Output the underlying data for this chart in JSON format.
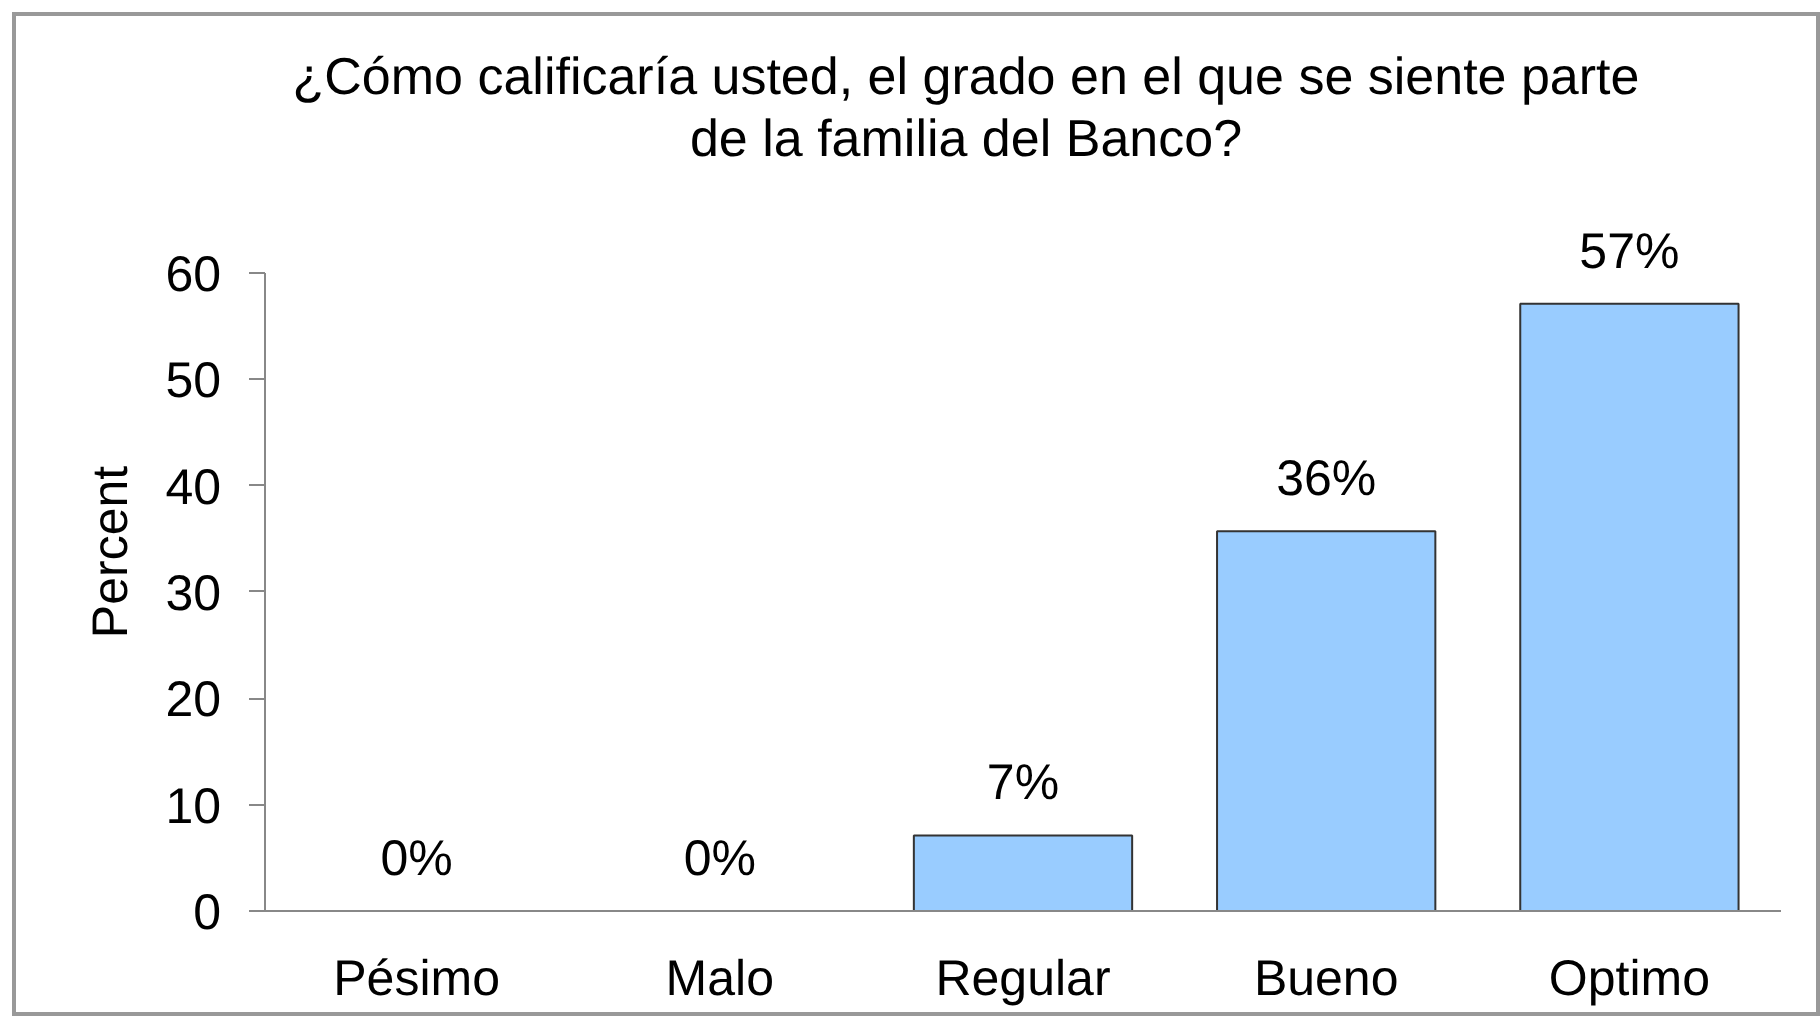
{
  "chart_data": {
    "type": "bar",
    "title": "¿Cómo calificaría usted, el grado en el que se siente parte de la familia del Banco?",
    "ylabel": "Percent",
    "categories": [
      "Pésimo",
      "Malo",
      "Regular",
      "Bueno",
      "Optimo"
    ],
    "values": [
      0,
      0,
      7.1,
      35.7,
      57.1
    ],
    "value_labels": [
      "0%",
      "0%",
      "7%",
      "36%",
      "57%"
    ],
    "color": "#99ccff",
    "ylim": [
      0,
      60
    ],
    "yticks": [
      0,
      10,
      20,
      30,
      40,
      50,
      60
    ]
  }
}
